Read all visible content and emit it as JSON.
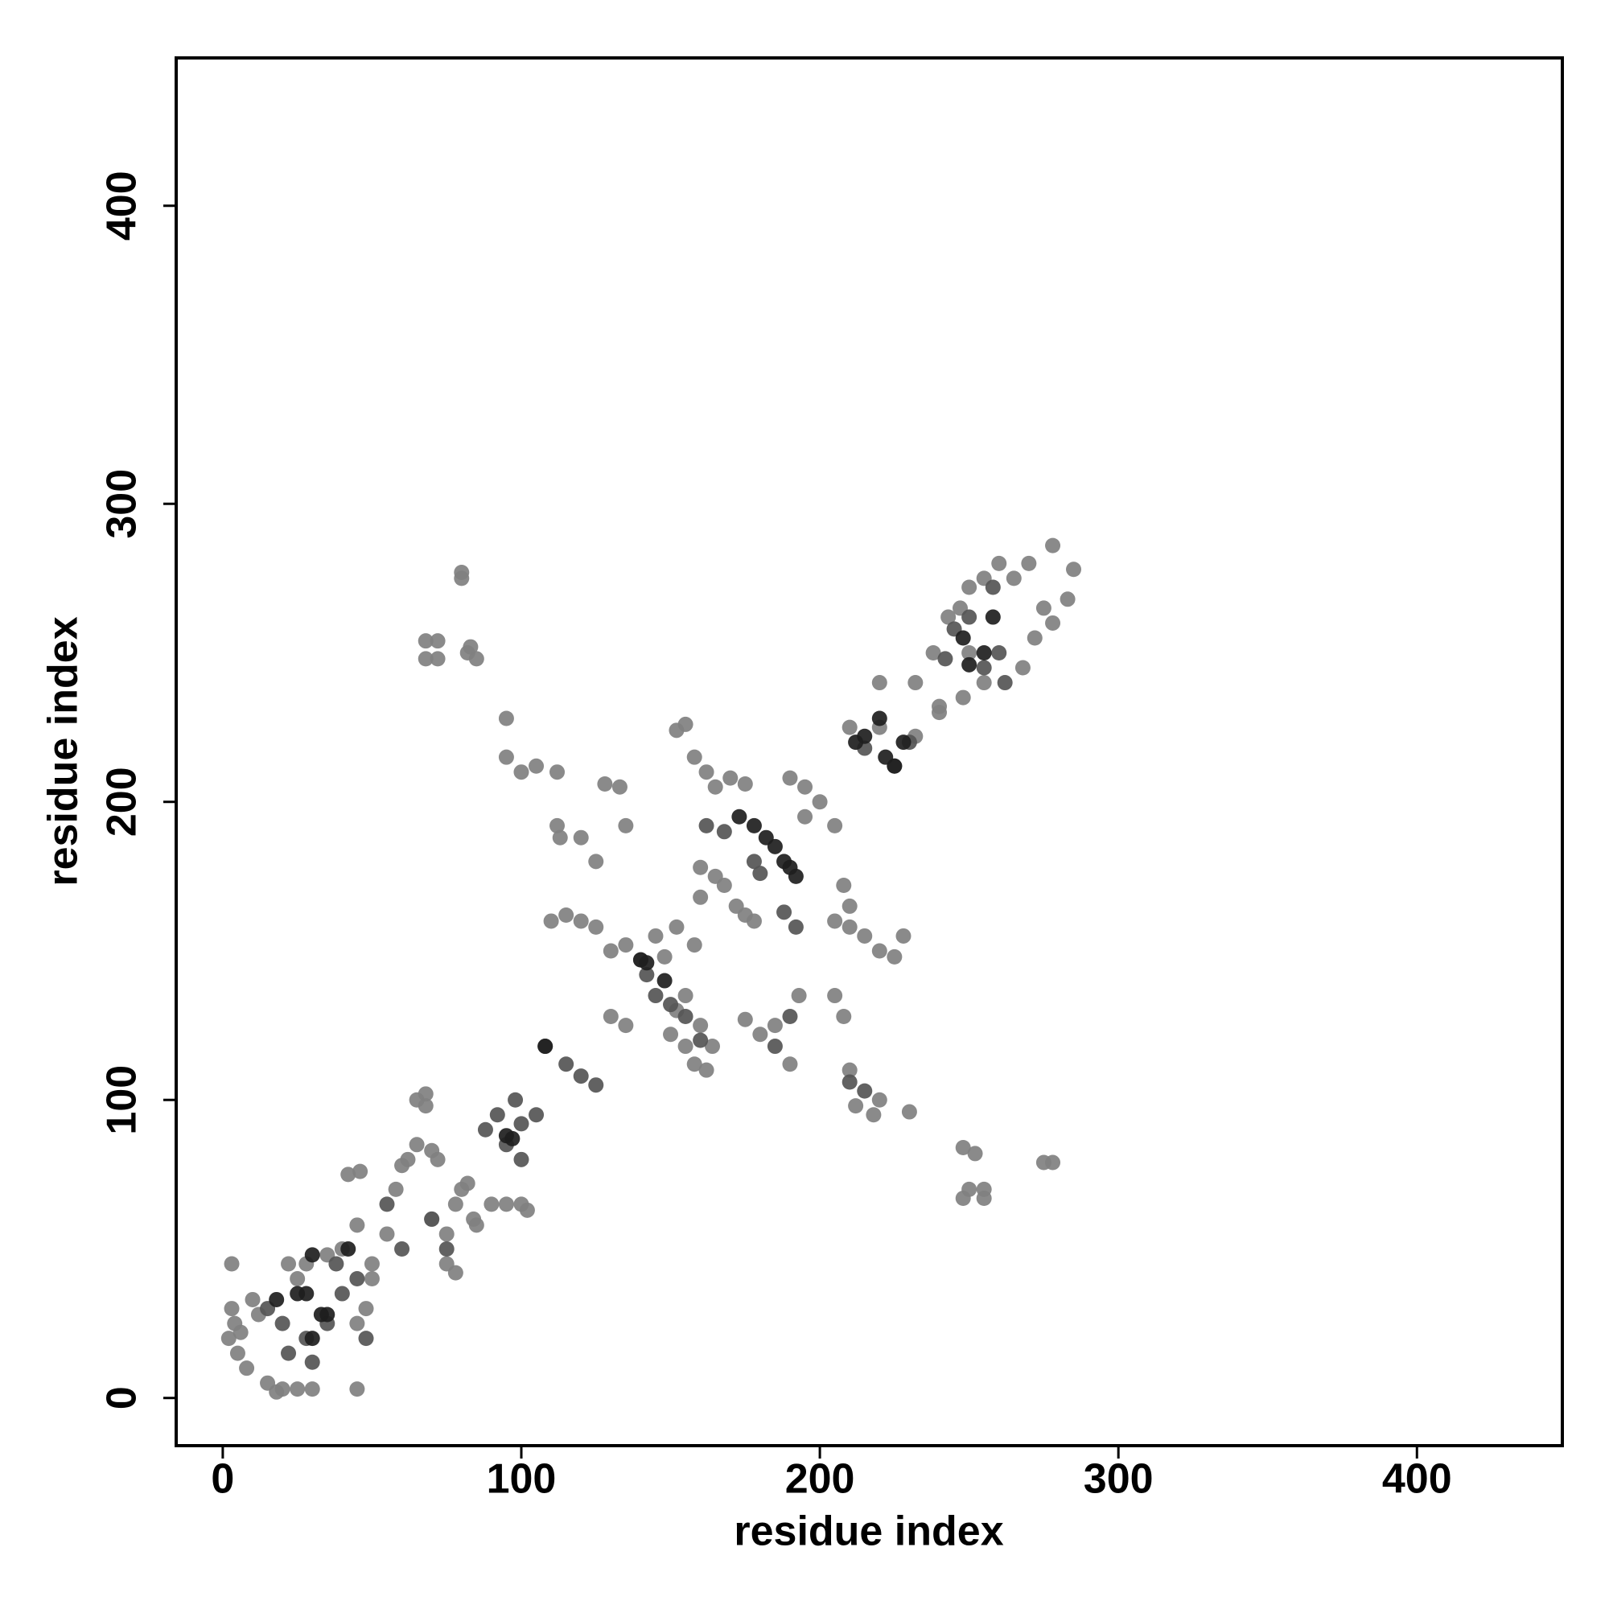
{
  "chart_data": {
    "type": "scatter",
    "x_label": "residue index",
    "y_label": "residue index",
    "xlim": [
      -15.6,
      448.7
    ],
    "ylim": [
      -16,
      449.6
    ],
    "xticks": [
      0,
      100,
      200,
      300,
      400
    ],
    "yticks": [
      0,
      100,
      200,
      300,
      400
    ],
    "grid": false,
    "series": [
      {
        "color": "#808080",
        "x": [
          3,
          3,
          2,
          5,
          8,
          10,
          15,
          18,
          20,
          25,
          30,
          45,
          4,
          6,
          12,
          22,
          25,
          28,
          35,
          40,
          45,
          48,
          50,
          45,
          42,
          46,
          50,
          55,
          58,
          60,
          62,
          65,
          65,
          68,
          70,
          72,
          75,
          78,
          80,
          82,
          84,
          85,
          78,
          75,
          90,
          95,
          100,
          102,
          70,
          68,
          80,
          80,
          68,
          72,
          68,
          72,
          82,
          85,
          83,
          95,
          95,
          100,
          105,
          112,
          112,
          113,
          120,
          125,
          128,
          133,
          135,
          110,
          115,
          120,
          125,
          130,
          135,
          140,
          130,
          135,
          145,
          148,
          152,
          158,
          160,
          152,
          155,
          158,
          162,
          165,
          170,
          175,
          160,
          165,
          168,
          172,
          175,
          178,
          155,
          152,
          150,
          155,
          158,
          162,
          164,
          160,
          175,
          180,
          185,
          190,
          193,
          190,
          195,
          200,
          195,
          205,
          208,
          210,
          205,
          210,
          215,
          220,
          225,
          228,
          205,
          208,
          210,
          212,
          218,
          220,
          230,
          248,
          252,
          250,
          255,
          248,
          255,
          275,
          278,
          210,
          220,
          232,
          238,
          240,
          250,
          255,
          260,
          265,
          270,
          278,
          285,
          275,
          278,
          272,
          268,
          255,
          248,
          243,
          247,
          232,
          240,
          250,
          220,
          283
        ],
        "values": [
          45,
          30,
          20,
          15,
          10,
          33,
          5,
          2,
          3,
          3,
          3,
          3,
          25,
          22,
          28,
          45,
          40,
          45,
          48,
          50,
          25,
          30,
          40,
          58,
          75,
          76,
          45,
          55,
          70,
          78,
          80,
          85,
          100,
          102,
          83,
          80,
          55,
          65,
          70,
          72,
          60,
          58,
          42,
          45,
          65,
          65,
          65,
          63,
          60,
          98,
          277,
          275,
          254,
          254,
          248,
          248,
          250,
          248,
          252,
          228,
          215,
          210,
          212,
          210,
          192,
          188,
          188,
          180,
          206,
          205,
          192,
          160,
          162,
          160,
          158,
          150,
          152,
          147,
          128,
          125,
          155,
          148,
          158,
          152,
          168,
          224,
          226,
          215,
          210,
          205,
          208,
          206,
          178,
          175,
          172,
          165,
          162,
          160,
          135,
          130,
          122,
          118,
          112,
          110,
          118,
          125,
          127,
          122,
          125,
          112,
          135,
          208,
          205,
          200,
          195,
          192,
          172,
          165,
          160,
          158,
          155,
          150,
          148,
          155,
          135,
          128,
          110,
          98,
          95,
          100,
          96,
          84,
          82,
          70,
          70,
          67,
          67,
          79,
          79,
          225,
          240,
          240,
          250,
          232,
          272,
          275,
          280,
          275,
          280,
          286,
          278,
          265,
          260,
          255,
          245,
          240,
          235,
          262,
          265,
          222,
          230,
          250,
          225,
          268
        ]
      },
      {
        "color": "#555555",
        "x": [
          15,
          20,
          22,
          28,
          30,
          35,
          40,
          45,
          38,
          48,
          55,
          60,
          70,
          75,
          88,
          92,
          98,
          100,
          105,
          108,
          115,
          120,
          125,
          100,
          95,
          150,
          155,
          160,
          168,
          162,
          188,
          192,
          190,
          185,
          215,
          225,
          230,
          242,
          245,
          250,
          255,
          260,
          262,
          258,
          210,
          215,
          145,
          142,
          178,
          180
        ],
        "values": [
          30,
          25,
          15,
          20,
          12,
          25,
          35,
          40,
          45,
          20,
          65,
          50,
          60,
          50,
          90,
          95,
          100,
          92,
          95,
          118,
          112,
          108,
          105,
          80,
          85,
          132,
          128,
          120,
          190,
          192,
          163,
          158,
          128,
          118,
          218,
          212,
          220,
          248,
          258,
          262,
          245,
          250,
          240,
          272,
          106,
          103,
          135,
          142,
          180,
          176
        ]
      },
      {
        "color": "#1e1e1e",
        "x": [
          25,
          28,
          33,
          35,
          18,
          30,
          30,
          42,
          95,
          97,
          108,
          140,
          142,
          148,
          173,
          178,
          182,
          185,
          188,
          190,
          192,
          212,
          215,
          220,
          222,
          225,
          228,
          248,
          255,
          250,
          258
        ],
        "values": [
          35,
          35,
          28,
          28,
          33,
          20,
          48,
          50,
          88,
          87,
          118,
          147,
          146,
          140,
          195,
          192,
          188,
          185,
          180,
          178,
          175,
          220,
          222,
          228,
          215,
          212,
          220,
          255,
          250,
          246,
          262
        ]
      }
    ]
  }
}
